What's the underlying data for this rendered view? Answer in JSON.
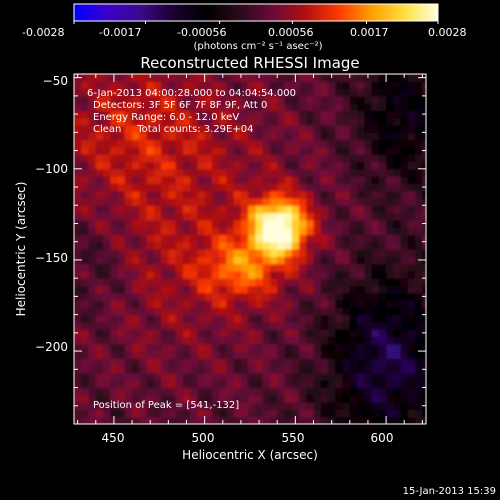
{
  "colorbar": {
    "ticks": [
      "-0.0028",
      "-0.0017",
      "-0.00056",
      "0.00056",
      "0.0017",
      "0.0028"
    ],
    "range": [
      -0.0028,
      0.0028
    ],
    "colormap": [
      "#0000ff",
      "#3a00cc",
      "#3a0a8a",
      "#1a0030",
      "#000000",
      "#2a0a1a",
      "#6a0a3a",
      "#b01010",
      "#ff3a00",
      "#ffa000",
      "#ffe040",
      "#ffffe0"
    ]
  },
  "chart_data": {
    "type": "heatmap",
    "title": "Reconstructed RHESSI Image",
    "xlabel": "Heliocentric X (arcsec)",
    "ylabel": "Heliocentric Y (arcsec)",
    "xlim": [
      428,
      622
    ],
    "ylim": [
      -240,
      -48
    ],
    "xticks": [
      450,
      500,
      550,
      600
    ],
    "yticks": [
      -50,
      -100,
      -150,
      -200
    ],
    "xtick_labels": [
      "450",
      "500",
      "550",
      "600"
    ],
    "ytick_labels": [
      "−50",
      "−100",
      "−150",
      "−200"
    ],
    "colorbar_label": "(photons cm⁻² s⁻¹ asec⁻²)",
    "peak": [
      541,
      -132
    ],
    "annotations": [
      "6-Jan-2013 04:00:28.000 to 04:04:54.000",
      "Detectors: 3F 5F 6F 7F 8F 9F, Att 0",
      "Energy Range: 6.0 - 12.0 keV",
      "Clean     Total counts: 3.29E+04",
      "Position of Peak = [541,-132]"
    ]
  },
  "footer": {
    "timestamp": "15-Jan-2013 15:39"
  }
}
